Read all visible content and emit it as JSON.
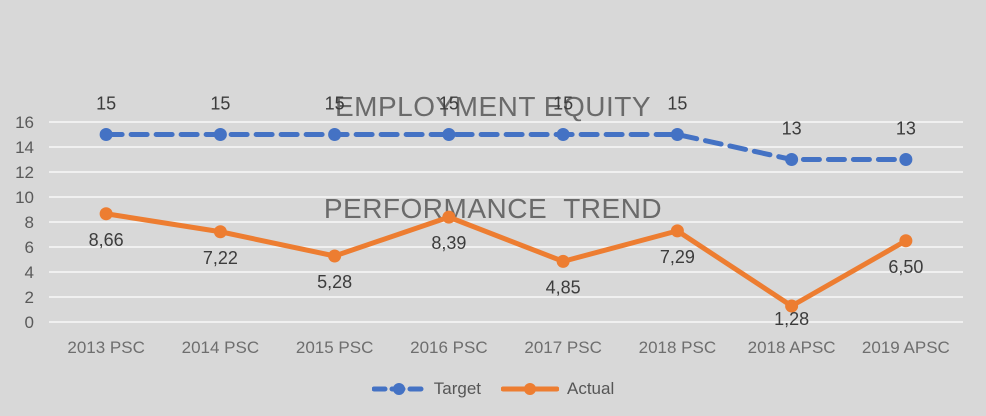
{
  "title": {
    "line1": "EMPLOYMENT EQUITY",
    "line2": "PERFORMANCE  TREND"
  },
  "legend": {
    "items": [
      {
        "label": "Target",
        "series": "target"
      },
      {
        "label": "Actual",
        "series": "actual"
      }
    ]
  },
  "colors": {
    "background": "#D8D8D8",
    "gridline": "#F7F7F7",
    "target": "#4472C4",
    "actual": "#ED7D31",
    "title_text": "#6A6A6A",
    "y_tick_text": "#5A5A5A",
    "x_label_text": "#6E6E6E",
    "data_label_text": "#3C3C3C",
    "legend_text": "#565656"
  },
  "chart_data": {
    "type": "line",
    "title": "EMPLOYMENT EQUITY PERFORMANCE TREND",
    "categories": [
      "2013 PSC",
      "2014 PSC",
      "2015 PSC",
      "2016 PSC",
      "2017 PSC",
      "2018 PSC",
      "2018 APSC",
      "2019 APSC"
    ],
    "series": [
      {
        "name": "Target",
        "values": [
          15,
          15,
          15,
          15,
          15,
          15,
          13,
          13
        ],
        "labels": [
          "15",
          "15",
          "15",
          "15",
          "15",
          "15",
          "13",
          "13"
        ],
        "style": "dashed",
        "color_key": "target",
        "label_position": "above"
      },
      {
        "name": "Actual",
        "values": [
          8.66,
          7.22,
          5.28,
          8.39,
          4.85,
          7.29,
          1.28,
          6.5
        ],
        "labels": [
          "8,66",
          "7,22",
          "5,28",
          "8,39",
          "4,85",
          "7,29",
          "1,28",
          "6,50"
        ],
        "style": "solid",
        "color_key": "actual",
        "label_position": "below"
      }
    ],
    "xlabel": "",
    "ylabel": "",
    "ylim": [
      0,
      16
    ],
    "ytick_step": 2,
    "yticks": [
      "0",
      "2",
      "4",
      "6",
      "8",
      "10",
      "12",
      "14",
      "16"
    ],
    "grid": "horizontal",
    "legend_position": "bottom",
    "decimal_separator": ","
  }
}
